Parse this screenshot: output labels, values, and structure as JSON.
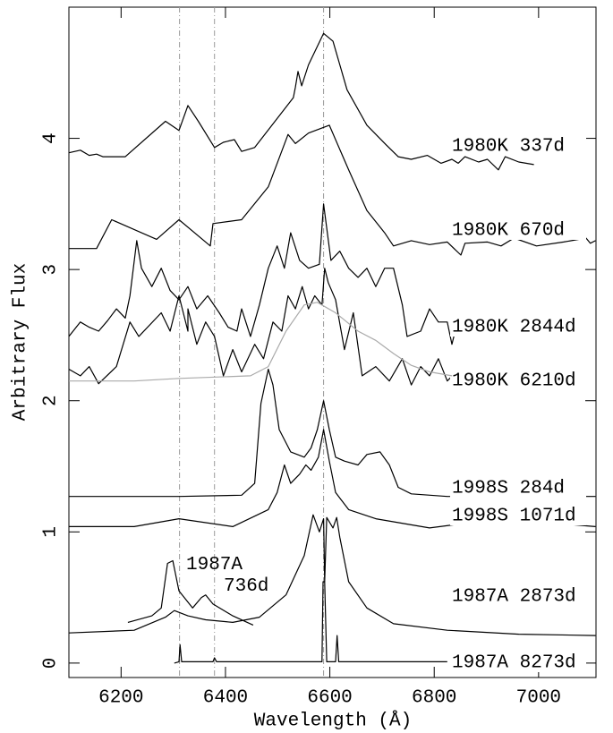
{
  "chart_data": {
    "type": "line",
    "x_label": "Wavelength (Å)",
    "y_label": "Arbitrary Flux",
    "xlim": [
      6100,
      7110
    ],
    "ylim": [
      -0.11,
      5.0
    ],
    "xticks": [
      6200,
      6400,
      6600,
      6800,
      7000
    ],
    "yticks": [
      0,
      1,
      2,
      3,
      4
    ],
    "vlines": [
      6312,
      6379,
      6588
    ],
    "vline_color": "#999999",
    "series": [
      {
        "name": "1980K 337d",
        "color": "#000000",
        "x": [
          6100,
          6122,
          6139,
          6153,
          6165,
          6208,
          6285,
          6311,
          6328,
          6348,
          6379,
          6396,
          6417,
          6431,
          6456,
          6530,
          6534,
          6539,
          6546,
          6559,
          6588,
          6606,
          6633,
          6671,
          6708,
          6731,
          6756,
          6787,
          6813,
          6834,
          6846,
          6859,
          6885,
          6902,
          6923,
          6936,
          6962,
          6991
        ],
        "values": [
          3.89,
          3.91,
          3.87,
          3.88,
          3.86,
          3.86,
          4.13,
          4.06,
          4.25,
          4.13,
          3.93,
          3.97,
          3.99,
          3.9,
          3.93,
          4.31,
          4.39,
          4.51,
          4.4,
          4.56,
          4.8,
          4.74,
          4.37,
          4.1,
          3.95,
          3.86,
          3.84,
          3.87,
          3.81,
          3.84,
          3.81,
          3.86,
          3.82,
          3.84,
          3.76,
          3.86,
          3.82,
          3.8
        ]
      },
      {
        "name": "1980K 670d",
        "color": "#000000",
        "x": [
          6100,
          6122,
          6153,
          6182,
          6268,
          6311,
          6371,
          6376,
          6431,
          6482,
          6520,
          6534,
          6559,
          6599,
          6636,
          6671,
          6705,
          6722,
          6756,
          6791,
          6825,
          6851,
          6859,
          6902,
          6928,
          6953,
          6996,
          7048,
          7091,
          7099,
          7109
        ],
        "values": [
          3.16,
          3.16,
          3.16,
          3.38,
          3.23,
          3.38,
          3.18,
          3.35,
          3.38,
          3.63,
          4.03,
          3.96,
          4.04,
          4.1,
          3.76,
          3.45,
          3.28,
          3.18,
          3.22,
          3.19,
          3.21,
          3.11,
          3.2,
          3.21,
          3.18,
          3.24,
          3.18,
          3.21,
          3.24,
          3.2,
          3.22
        ]
      },
      {
        "name": "1980K 2844d",
        "color": "#000000",
        "x": [
          6100,
          6122,
          6139,
          6157,
          6174,
          6191,
          6208,
          6217,
          6230,
          6239,
          6259,
          6277,
          6294,
          6311,
          6328,
          6345,
          6366,
          6388,
          6405,
          6422,
          6431,
          6448,
          6465,
          6482,
          6499,
          6513,
          6525,
          6542,
          6559,
          6580,
          6588,
          6602,
          6619,
          6636,
          6654,
          6671,
          6688,
          6705,
          6722,
          6739,
          6748,
          6774,
          6791,
          6808,
          6825,
          6834,
          6842
        ],
        "values": [
          2.49,
          2.6,
          2.56,
          2.53,
          2.61,
          2.7,
          2.63,
          2.8,
          3.22,
          3.01,
          2.87,
          3.01,
          2.84,
          2.77,
          2.87,
          2.7,
          2.8,
          2.67,
          2.56,
          2.53,
          2.7,
          2.49,
          2.73,
          3.01,
          3.18,
          3.01,
          3.28,
          3.07,
          3.01,
          3.04,
          3.5,
          3.07,
          3.14,
          3.01,
          2.94,
          3.01,
          2.87,
          3.01,
          3.01,
          2.73,
          2.49,
          2.53,
          2.7,
          2.6,
          2.6,
          2.43,
          2.56
        ]
      },
      {
        "name": "1980K 6210d",
        "color": "#000000",
        "x": [
          6100,
          6122,
          6139,
          6157,
          6191,
          6217,
          6234,
          6277,
          6294,
          6311,
          6328,
          6328,
          6345,
          6362,
          6379,
          6396,
          6414,
          6431,
          6456,
          6473,
          6491,
          6508,
          6520,
          6534,
          6547,
          6559,
          6571,
          6585,
          6590,
          6597,
          6611,
          6628,
          6645,
          6662,
          6688,
          6714,
          6739,
          6756,
          6774,
          6791,
          6808,
          6825,
          6842
        ],
        "values": [
          2.24,
          2.19,
          2.26,
          2.13,
          2.26,
          2.6,
          2.49,
          2.67,
          2.53,
          2.8,
          2.53,
          2.7,
          2.43,
          2.6,
          2.49,
          2.19,
          2.39,
          2.22,
          2.43,
          2.32,
          2.6,
          2.53,
          2.8,
          2.7,
          2.87,
          2.7,
          2.8,
          2.73,
          3.01,
          2.9,
          2.77,
          2.39,
          2.67,
          2.19,
          2.26,
          2.15,
          2.32,
          2.12,
          2.26,
          2.19,
          2.32,
          2.15,
          2.22
        ]
      },
      {
        "color": "#aaaaaa",
        "x": [
          6100,
          6225,
          6311,
          6448,
          6482,
          6516,
          6551,
          6576,
          6611,
          6654,
          6688,
          6722,
          6756,
          6791,
          6834
        ],
        "values": [
          2.15,
          2.15,
          2.17,
          2.19,
          2.26,
          2.53,
          2.73,
          2.75,
          2.67,
          2.53,
          2.46,
          2.36,
          2.27,
          2.22,
          2.19
        ]
      },
      {
        "name": "1998S 284d",
        "color": "#000000",
        "x": [
          6100,
          6311,
          6431,
          6456,
          6468,
          6482,
          6491,
          6503,
          6525,
          6551,
          6564,
          6576,
          6588,
          6599,
          6611,
          6628,
          6654,
          6671,
          6696,
          6714,
          6731,
          6756,
          6825,
          7109
        ],
        "values": [
          1.27,
          1.27,
          1.28,
          1.37,
          1.98,
          2.24,
          2.12,
          1.78,
          1.61,
          1.57,
          1.64,
          1.78,
          2.0,
          1.78,
          1.57,
          1.54,
          1.51,
          1.59,
          1.61,
          1.51,
          1.34,
          1.29,
          1.27,
          1.27
        ]
      },
      {
        "name": "1998S 1071d",
        "color": "#000000",
        "x": [
          6100,
          6225,
          6311,
          6414,
          6482,
          6499,
          6513,
          6525,
          6542,
          6554,
          6564,
          6578,
          6588,
          6599,
          6611,
          6636,
          6688,
          6791,
          6928,
          7109
        ],
        "values": [
          1.04,
          1.04,
          1.1,
          1.04,
          1.17,
          1.3,
          1.51,
          1.37,
          1.44,
          1.51,
          1.47,
          1.57,
          1.78,
          1.54,
          1.3,
          1.17,
          1.1,
          1.03,
          1.1,
          1.04
        ]
      },
      {
        "name": "1987A 736d",
        "color": "#000000",
        "x": [
          6213,
          6259,
          6277,
          6289,
          6299,
          6311,
          6337,
          6354,
          6362,
          6376,
          6414,
          6453
        ],
        "values": [
          0.31,
          0.36,
          0.42,
          0.76,
          0.78,
          0.55,
          0.42,
          0.5,
          0.52,
          0.45,
          0.36,
          0.29
        ]
      },
      {
        "name": "1987A 2873d",
        "color": "#000000",
        "x": [
          6100,
          6225,
          6285,
          6302,
          6328,
          6362,
          6414,
          6465,
          6516,
          6551,
          6568,
          6580,
          6588,
          6590,
          6594,
          6606,
          6613,
          6619,
          6636,
          6671,
          6722,
          6825,
          6962,
          7109
        ],
        "values": [
          0.23,
          0.25,
          0.35,
          0.4,
          0.36,
          0.33,
          0.31,
          0.35,
          0.52,
          0.82,
          1.13,
          1.0,
          1.1,
          0.62,
          1.11,
          1.03,
          1.11,
          0.96,
          0.62,
          0.42,
          0.3,
          0.25,
          0.22,
          0.21
        ]
      },
      {
        "name": "1987A 8273d",
        "color": "#000000",
        "x": [
          6302,
          6311,
          6313,
          6316,
          6376,
          6379,
          6383,
          6585,
          6587,
          6590,
          6594,
          6611,
          6614,
          6617,
          6654,
          6825
        ],
        "values": [
          0,
          0.01,
          0.14,
          0.01,
          0.01,
          0.04,
          0.01,
          0.01,
          0.62,
          0.62,
          0.01,
          0.01,
          0.21,
          0.01,
          0.01,
          0.01
        ]
      }
    ]
  }
}
